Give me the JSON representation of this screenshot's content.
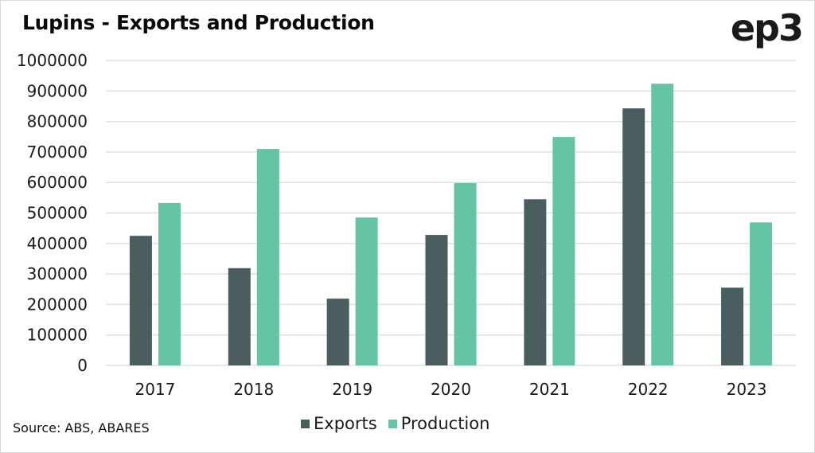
{
  "header": {
    "title": "Lupins - Exports and Production",
    "logo": "ep3"
  },
  "footer": {
    "source": "Source: ABS, ABARES"
  },
  "chart_data": {
    "type": "bar",
    "title": "Lupins - Exports and Production",
    "xlabel": "",
    "ylabel": "",
    "categories": [
      "2017",
      "2018",
      "2019",
      "2020",
      "2021",
      "2022",
      "2023"
    ],
    "series": [
      {
        "name": "Exports",
        "color": "#4a5e5f",
        "values": [
          425000,
          319000,
          219000,
          428000,
          545000,
          843000,
          255000
        ]
      },
      {
        "name": "Production",
        "color": "#64c4a4",
        "values": [
          533000,
          710000,
          485000,
          598000,
          749000,
          924000,
          469000
        ]
      }
    ],
    "ylim": [
      0,
      1000000
    ],
    "yticks": [
      0,
      100000,
      200000,
      300000,
      400000,
      500000,
      600000,
      700000,
      800000,
      900000,
      1000000
    ],
    "ytick_labels": [
      "0",
      "100000",
      "200000",
      "300000",
      "400000",
      "500000",
      "600000",
      "700000",
      "800000",
      "900000",
      "1000000"
    ],
    "grid": true,
    "legend_position": "bottom-center",
    "gridline_color": "#e0e0e0"
  }
}
